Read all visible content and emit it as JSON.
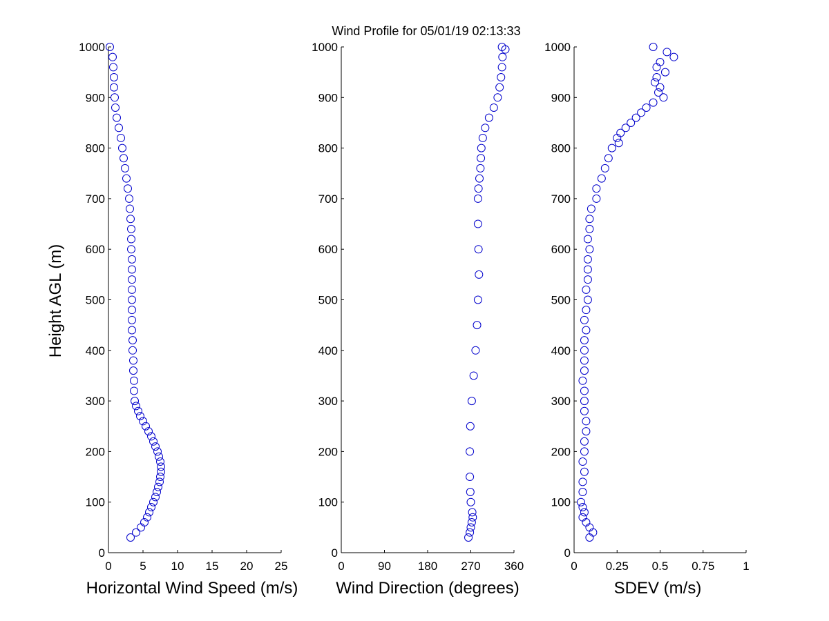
{
  "figure": {
    "title": "Wind Profile for  05/01/19 02:13:33",
    "marker_color": "#0000CC",
    "axis_color": "#000000",
    "background": "#ffffff"
  },
  "chart_data": [
    {
      "type": "scatter",
      "xlabel": "Horizontal Wind Speed (m/s)",
      "ylabel": "Height AGL (m)",
      "xlim": [
        0,
        25
      ],
      "ylim": [
        0,
        1000
      ],
      "xticks": [
        0,
        5,
        10,
        15,
        20,
        25
      ],
      "yticks": [
        0,
        100,
        200,
        300,
        400,
        500,
        600,
        700,
        800,
        900,
        1000
      ],
      "grid": false,
      "series": [
        {
          "marker": "circle-open",
          "y": [
            30,
            40,
            50,
            60,
            70,
            80,
            90,
            100,
            110,
            120,
            130,
            140,
            150,
            160,
            170,
            180,
            190,
            200,
            210,
            220,
            230,
            240,
            250,
            260,
            270,
            280,
            290,
            300,
            320,
            340,
            360,
            380,
            400,
            420,
            440,
            460,
            480,
            500,
            520,
            540,
            560,
            580,
            600,
            620,
            640,
            660,
            680,
            700,
            720,
            740,
            760,
            780,
            800,
            820,
            840,
            860,
            880,
            900,
            920,
            940,
            960,
            980,
            1000
          ],
          "x": [
            3.2,
            4.0,
            4.7,
            5.2,
            5.6,
            5.9,
            6.2,
            6.5,
            6.8,
            7.0,
            7.2,
            7.4,
            7.5,
            7.6,
            7.6,
            7.5,
            7.3,
            7.1,
            6.8,
            6.5,
            6.2,
            5.8,
            5.4,
            5.0,
            4.6,
            4.3,
            4.0,
            3.8,
            3.7,
            3.7,
            3.6,
            3.6,
            3.5,
            3.5,
            3.4,
            3.4,
            3.4,
            3.4,
            3.4,
            3.4,
            3.4,
            3.4,
            3.3,
            3.3,
            3.3,
            3.2,
            3.1,
            3.0,
            2.8,
            2.6,
            2.4,
            2.2,
            2.0,
            1.8,
            1.5,
            1.2,
            1.0,
            0.9,
            0.8,
            0.8,
            0.7,
            0.6,
            0.2
          ]
        }
      ]
    },
    {
      "type": "scatter",
      "xlabel": "Wind Direction (degrees)",
      "ylabel": "",
      "xlim": [
        0,
        360
      ],
      "ylim": [
        0,
        1000
      ],
      "xticks": [
        0,
        90,
        180,
        270,
        360
      ],
      "yticks": [
        0,
        100,
        200,
        300,
        400,
        500,
        600,
        700,
        800,
        900,
        1000
      ],
      "grid": false,
      "series": [
        {
          "marker": "circle-open",
          "y": [
            30,
            40,
            50,
            60,
            70,
            80,
            100,
            120,
            150,
            200,
            250,
            300,
            350,
            400,
            450,
            500,
            550,
            600,
            650,
            700,
            720,
            740,
            760,
            780,
            800,
            820,
            840,
            860,
            880,
            900,
            920,
            940,
            960,
            980,
            995,
            1000
          ],
          "x": [
            265,
            268,
            270,
            272,
            274,
            273,
            270,
            269,
            268,
            268,
            269,
            272,
            276,
            280,
            283,
            285,
            287,
            286,
            285,
            285,
            286,
            288,
            290,
            291,
            292,
            295,
            300,
            308,
            318,
            326,
            330,
            333,
            335,
            336,
            342,
            335
          ]
        }
      ]
    },
    {
      "type": "scatter",
      "xlabel": "SDEV  (m/s)",
      "ylabel": "",
      "xlim": [
        0,
        1
      ],
      "ylim": [
        0,
        1000
      ],
      "xticks": [
        "0",
        "0.25",
        "0.5",
        "0.75",
        "1"
      ],
      "yticks": [
        0,
        100,
        200,
        300,
        400,
        500,
        600,
        700,
        800,
        900,
        1000
      ],
      "grid": false,
      "series": [
        {
          "marker": "circle-open",
          "y": [
            30,
            40,
            50,
            60,
            70,
            80,
            90,
            100,
            120,
            140,
            160,
            180,
            200,
            220,
            240,
            260,
            280,
            300,
            320,
            340,
            360,
            380,
            400,
            420,
            440,
            460,
            480,
            500,
            520,
            540,
            560,
            580,
            600,
            620,
            640,
            660,
            680,
            700,
            720,
            740,
            760,
            780,
            800,
            810,
            820,
            830,
            840,
            850,
            860,
            870,
            880,
            890,
            900,
            910,
            920,
            930,
            940,
            950,
            960,
            970,
            980,
            990,
            1000
          ],
          "x": [
            0.09,
            0.11,
            0.09,
            0.07,
            0.05,
            0.06,
            0.05,
            0.04,
            0.05,
            0.05,
            0.06,
            0.05,
            0.06,
            0.06,
            0.07,
            0.07,
            0.06,
            0.06,
            0.06,
            0.05,
            0.06,
            0.06,
            0.06,
            0.06,
            0.07,
            0.06,
            0.07,
            0.08,
            0.07,
            0.08,
            0.08,
            0.08,
            0.09,
            0.08,
            0.09,
            0.09,
            0.1,
            0.13,
            0.13,
            0.16,
            0.18,
            0.2,
            0.22,
            0.26,
            0.25,
            0.27,
            0.3,
            0.33,
            0.36,
            0.39,
            0.42,
            0.46,
            0.52,
            0.49,
            0.5,
            0.47,
            0.48,
            0.53,
            0.48,
            0.5,
            0.58,
            0.54,
            0.46
          ]
        }
      ]
    }
  ]
}
